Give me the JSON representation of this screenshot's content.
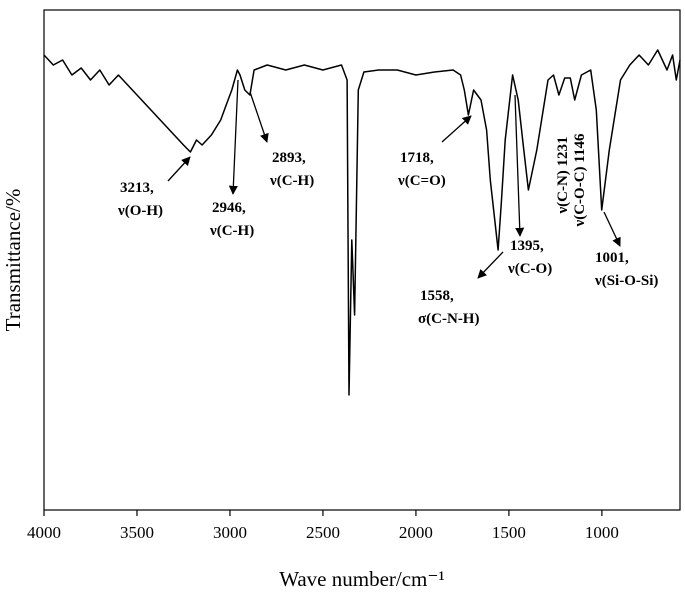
{
  "chart_data": {
    "type": "line",
    "ylabel": "Transmittance/%",
    "xlabel": "Wave number/cm⁻¹",
    "xlim": [
      4000,
      580
    ],
    "ylim": [
      0,
      100
    ],
    "xticks": [
      4000,
      3500,
      3000,
      2500,
      2000,
      1500,
      1000
    ],
    "color": "#000000",
    "x": [
      4000,
      3950,
      3900,
      3850,
      3800,
      3750,
      3700,
      3650,
      3600,
      3550,
      3500,
      3450,
      3400,
      3350,
      3300,
      3250,
      3213,
      3180,
      3150,
      3100,
      3050,
      3020,
      2990,
      2960,
      2946,
      2920,
      2893,
      2870,
      2800,
      2700,
      2600,
      2500,
      2400,
      2370,
      2360,
      2345,
      2330,
      2310,
      2280,
      2200,
      2100,
      2000,
      1900,
      1800,
      1760,
      1740,
      1718,
      1690,
      1650,
      1620,
      1600,
      1558,
      1540,
      1520,
      1480,
      1450,
      1420,
      1395,
      1350,
      1290,
      1260,
      1231,
      1200,
      1170,
      1146,
      1110,
      1060,
      1030,
      1001,
      960,
      900,
      850,
      800,
      750,
      700,
      650,
      620,
      600,
      580
    ],
    "values": [
      91,
      89,
      90,
      87,
      88.4,
      86,
      88,
      85,
      87,
      85,
      83,
      81,
      79,
      77,
      75,
      73,
      71.6,
      74,
      73,
      75,
      78,
      81,
      84,
      88,
      87,
      84,
      83,
      88,
      89,
      88,
      89,
      88,
      89,
      86,
      23,
      54,
      39,
      84,
      87.6,
      88,
      88,
      87,
      87.6,
      88,
      87,
      84,
      79,
      84,
      82,
      76,
      66,
      52,
      62,
      74,
      87,
      82,
      72,
      64,
      72,
      86,
      87,
      83,
      86.4,
      86.4,
      82,
      87,
      88,
      80,
      60,
      72,
      86,
      89,
      91,
      89,
      92,
      88,
      91,
      86,
      90
    ],
    "annotations": [
      {
        "lines": [
          "3213,",
          "ν(O-H)"
        ]
      },
      {
        "lines": [
          "2946,",
          "ν(C-H)"
        ]
      },
      {
        "lines": [
          "2893,",
          "ν(C-H)"
        ]
      },
      {
        "lines": [
          "1718,",
          "ν(C=O)"
        ]
      },
      {
        "lines": [
          "1558,",
          "σ(C-N-H)"
        ]
      },
      {
        "lines": [
          "1395,",
          "ν(C-O)"
        ]
      },
      {
        "lines": [
          "ν(C-N) 1231"
        ]
      },
      {
        "lines": [
          "ν(C-O-C) 1146"
        ]
      },
      {
        "lines": [
          "1001,",
          "ν(Si-O-Si)"
        ]
      }
    ]
  }
}
